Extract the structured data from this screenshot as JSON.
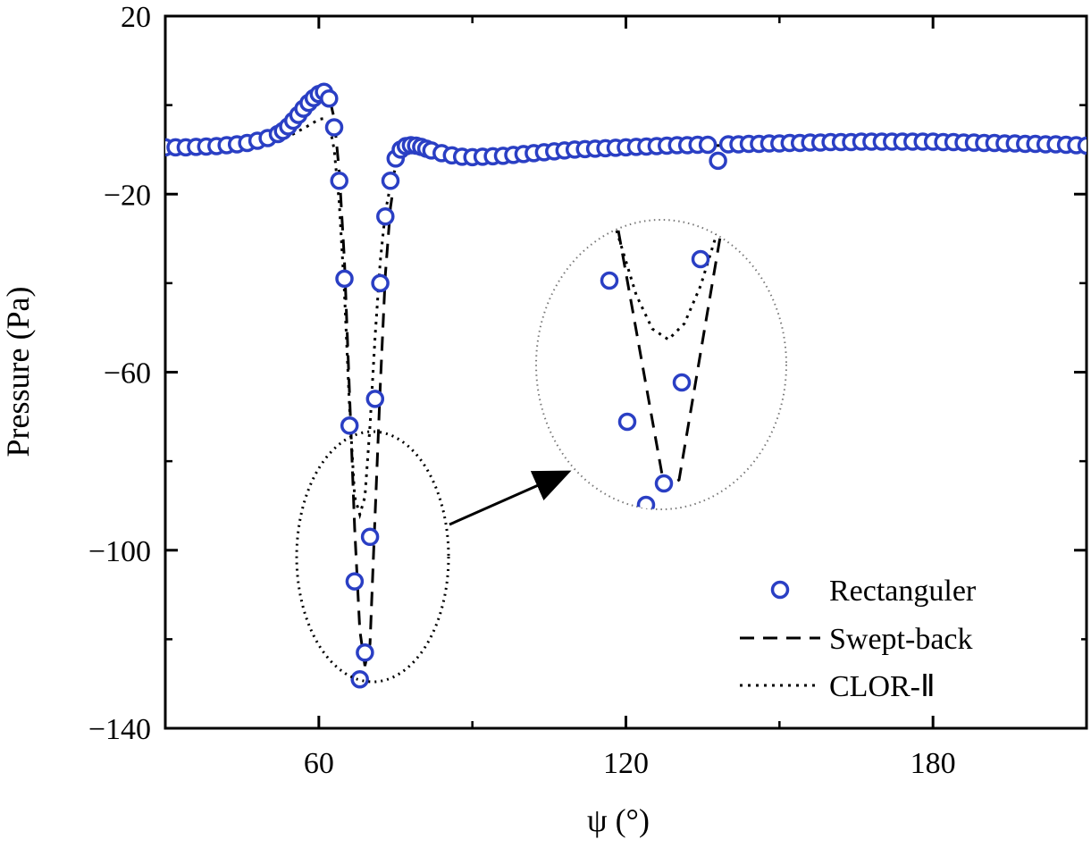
{
  "chart_data": {
    "type": "scatter",
    "title": "",
    "xlabel": "ψ (°)",
    "ylabel": "Pressure (Pa)",
    "xlim": [
      30,
      210
    ],
    "ylim": [
      -140,
      20
    ],
    "xticks": [
      60,
      120,
      180
    ],
    "xtick_labels": [
      "60",
      "120",
      "180"
    ],
    "yticks": [
      20,
      -20,
      -60,
      -100,
      -140
    ],
    "ytick_labels": [
      "20",
      "−20",
      "−60",
      "−100",
      "−140"
    ],
    "grid": false,
    "legend_position": "bottom-right",
    "series": [
      {
        "name": "Rectanguler",
        "style": "markers",
        "marker": "open-circle",
        "color": "#2a3fc4",
        "x": [
          30,
          32,
          34,
          36,
          38,
          40,
          42,
          44,
          46,
          48,
          50,
          52,
          53,
          54,
          55,
          56,
          57,
          58,
          59,
          60,
          61,
          62,
          63,
          64,
          65,
          66,
          67,
          68,
          69,
          70,
          71,
          72,
          73,
          74,
          75,
          76,
          77,
          78,
          79,
          80,
          81,
          82,
          84,
          86,
          88,
          90,
          92,
          94,
          96,
          98,
          100,
          102,
          104,
          106,
          108,
          110,
          112,
          114,
          116,
          118,
          120,
          122,
          124,
          126,
          128,
          130,
          132,
          134,
          136,
          138,
          140,
          142,
          144,
          146,
          148,
          150,
          152,
          154,
          156,
          158,
          160,
          162,
          164,
          166,
          168,
          170,
          172,
          174,
          176,
          178,
          180,
          182,
          184,
          186,
          188,
          190,
          192,
          194,
          196,
          198,
          200,
          202,
          204,
          206,
          208,
          210
        ],
        "y": [
          -9.5,
          -9.5,
          -9.5,
          -9.4,
          -9.3,
          -9.2,
          -9.0,
          -8.8,
          -8.5,
          -8.0,
          -7.4,
          -6.5,
          -5.8,
          -4.8,
          -3.5,
          -2.2,
          -0.8,
          0.5,
          1.6,
          2.5,
          3.0,
          1.5,
          -5,
          -17,
          -39,
          -72,
          -107,
          -129,
          -123,
          -97,
          -66,
          -40,
          -25,
          -17,
          -12,
          -10,
          -9.2,
          -9,
          -9.1,
          -9.4,
          -9.8,
          -10.2,
          -10.8,
          -11.3,
          -11.6,
          -11.7,
          -11.6,
          -11.5,
          -11.4,
          -11.2,
          -11.0,
          -10.8,
          -10.6,
          -10.4,
          -10.2,
          -10.0,
          -9.9,
          -9.8,
          -9.7,
          -9.6,
          -9.5,
          -9.4,
          -9.3,
          -9.2,
          -9.1,
          -9.0,
          -9.0,
          -8.9,
          -8.9,
          -12.5,
          -8.8,
          -8.8,
          -8.7,
          -8.7,
          -8.6,
          -8.6,
          -8.5,
          -8.5,
          -8.4,
          -8.4,
          -8.3,
          -8.3,
          -8.3,
          -8.2,
          -8.2,
          -8.2,
          -8.2,
          -8.2,
          -8.2,
          -8.2,
          -8.2,
          -8.3,
          -8.3,
          -8.4,
          -8.4,
          -8.5,
          -8.5,
          -8.6,
          -8.6,
          -8.7,
          -8.7,
          -8.8,
          -8.8,
          -8.9,
          -9.0,
          -9.1
        ]
      },
      {
        "name": "Swept-back",
        "style": "dashed",
        "color": "#000000",
        "x": [
          30,
          40,
          50,
          55,
          58,
          60,
          61,
          62,
          63,
          64,
          65,
          66,
          67,
          68,
          69,
          70,
          71,
          72,
          73,
          74,
          75,
          76,
          78,
          80,
          85,
          90,
          100,
          120,
          150,
          180,
          210
        ],
        "y": [
          -9.5,
          -9.3,
          -7.8,
          -4.0,
          -0.8,
          1.5,
          2.5,
          2.0,
          -3,
          -15,
          -35,
          -65,
          -95,
          -118,
          -126,
          -121,
          -92,
          -63,
          -38,
          -23,
          -15,
          -11,
          -9.5,
          -9.6,
          -11.0,
          -11.6,
          -11.0,
          -9.5,
          -8.8,
          -8.3,
          -8.5
        ]
      },
      {
        "name": "CLOR-Ⅱ",
        "style": "dotted",
        "color": "#000000",
        "x": [
          30,
          40,
          50,
          55,
          58,
          60,
          61,
          62,
          63,
          64,
          65,
          66,
          67,
          68,
          69,
          70,
          71,
          72,
          73,
          74,
          75,
          76,
          77,
          78,
          80,
          85,
          90,
          100,
          120,
          150,
          180,
          210
        ],
        "y": [
          -9.5,
          -9.4,
          -8.6,
          -6.5,
          -4.6,
          -3.2,
          -3.0,
          -4,
          -10,
          -22,
          -42,
          -68,
          -88,
          -92,
          -88,
          -72,
          -52,
          -35,
          -24,
          -18,
          -14,
          -12,
          -11,
          -10.8,
          -10.4,
          -11.0,
          -11.4,
          -10.9,
          -9.6,
          -8.9,
          -8.5,
          -8.8
        ]
      }
    ],
    "annotations": [
      {
        "type": "dotted-ellipse",
        "label": ""
      },
      {
        "type": "arrow",
        "label": ""
      },
      {
        "type": "magnified-inset",
        "label": ""
      }
    ]
  },
  "legend": {
    "items": [
      {
        "label": "Rectanguler"
      },
      {
        "label": "Swept-back"
      },
      {
        "label": "CLOR-Ⅱ"
      }
    ]
  }
}
